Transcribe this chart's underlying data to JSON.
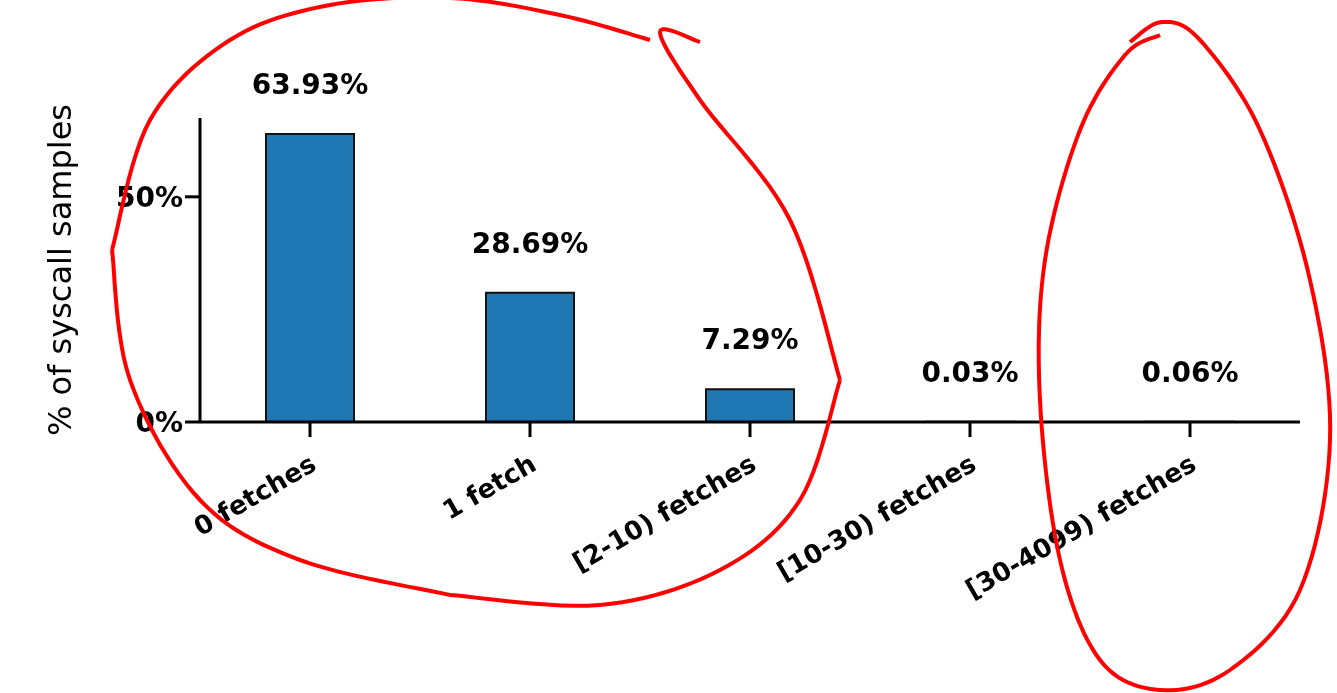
{
  "chart_data": {
    "type": "bar",
    "ylabel": "% of syscall samples",
    "categories": [
      "0 fetches",
      "1 fetch",
      "[2-10) fetches",
      "[10-30) fetches",
      "[30-4099) fetches"
    ],
    "values": [
      63.93,
      28.69,
      7.29,
      0.03,
      0.06
    ],
    "value_labels": [
      "63.93%",
      "28.69%",
      "7.29%",
      "0.03%",
      "0.06%"
    ],
    "color": "#1f77b4",
    "ylim": [
      0,
      67.5
    ],
    "yticks": [
      {
        "value": 0,
        "label": "0%"
      },
      {
        "value": 50,
        "label": "50%"
      }
    ],
    "grid": false,
    "legend": false
  }
}
